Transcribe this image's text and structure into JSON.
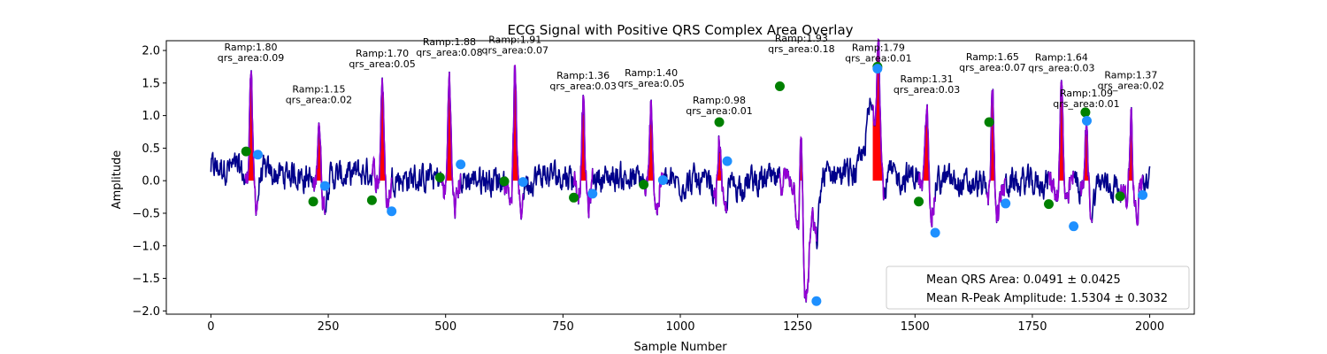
{
  "chart_data": {
    "type": "line",
    "title": "ECG Signal with Positive QRS Complex Area Overlay",
    "xlabel": "Sample Number",
    "ylabel": "Amplitude",
    "xlim": [
      -95,
      2095
    ],
    "ylim": [
      -2.05,
      2.15
    ],
    "xticks": [
      0,
      250,
      500,
      750,
      1000,
      1250,
      1500,
      1750,
      2000
    ],
    "xtick_labels": [
      "0",
      "250",
      "500",
      "750",
      "1000",
      "1250",
      "1500",
      "1750",
      "2000"
    ],
    "yticks": [
      -2.0,
      -1.5,
      -1.0,
      -0.5,
      0.0,
      0.5,
      1.0,
      1.5,
      2.0
    ],
    "ytick_labels": [
      "−2.0",
      "−1.5",
      "−1.0",
      "−0.5",
      "0.0",
      "0.5",
      "1.0",
      "1.5",
      "2.0"
    ],
    "grid": false,
    "colors": {
      "signal": "#00008b",
      "qrs_segment": "#9400d3",
      "area_fill": "#ff0000",
      "qrs_onset": "#008000",
      "qrs_offset": "#1e90ff"
    },
    "qrs_complexes": [
      {
        "r_x": 85,
        "r_amp": 1.8,
        "qrs_area": 0.09,
        "ramp_label": "Ramp:1.80",
        "area_label": "qrs_area:0.09",
        "onset": [
          75,
          0.45
        ],
        "offset": [
          100,
          0.4
        ]
      },
      {
        "r_x": 230,
        "r_amp": 1.15,
        "qrs_area": 0.02,
        "ramp_label": "Ramp:1.15",
        "area_label": "qrs_area:0.02",
        "onset": [
          218,
          -0.32
        ],
        "offset": [
          243,
          -0.08
        ]
      },
      {
        "r_x": 365,
        "r_amp": 1.7,
        "qrs_area": 0.05,
        "ramp_label": "Ramp:1.70",
        "area_label": "qrs_area:0.05",
        "onset": [
          343,
          -0.3
        ],
        "offset": [
          385,
          -0.47
        ]
      },
      {
        "r_x": 508,
        "r_amp": 1.88,
        "qrs_area": 0.08,
        "ramp_label": "Ramp:1.88",
        "area_label": "qrs_area:0.08",
        "onset": [
          488,
          0.05
        ],
        "offset": [
          532,
          0.25
        ]
      },
      {
        "r_x": 648,
        "r_amp": 1.91,
        "qrs_area": 0.07,
        "ramp_label": "Ramp:1.91",
        "area_label": "qrs_area:0.07",
        "onset": [
          625,
          -0.01
        ],
        "offset": [
          665,
          -0.02
        ]
      },
      {
        "r_x": 793,
        "r_amp": 1.36,
        "qrs_area": 0.03,
        "ramp_label": "Ramp:1.36",
        "area_label": "qrs_area:0.03",
        "onset": [
          773,
          -0.26
        ],
        "offset": [
          813,
          -0.2
        ]
      },
      {
        "r_x": 938,
        "r_amp": 1.4,
        "qrs_area": 0.05,
        "ramp_label": "Ramp:1.40",
        "area_label": "qrs_area:0.05",
        "onset": [
          922,
          -0.06
        ],
        "offset": [
          963,
          0.01
        ]
      },
      {
        "r_x": 1083,
        "r_amp": 0.98,
        "qrs_area": 0.01,
        "ramp_label": "Ramp:0.98",
        "area_label": "qrs_area:0.01",
        "onset": [
          1083,
          0.9
        ],
        "offset": [
          1100,
          0.3
        ]
      },
      {
        "r_x": 1258,
        "r_amp": 1.93,
        "qrs_area": 0.18,
        "ramp_label": "Ramp:1.93",
        "area_label": "qrs_area:0.18",
        "onset": [
          1212,
          1.45
        ],
        "offset": [
          1290,
          -1.85
        ]
      },
      {
        "r_x": 1422,
        "r_amp": 1.79,
        "qrs_area": 0.01,
        "ramp_label": "Ramp:1.79",
        "area_label": "qrs_area:0.01",
        "onset": [
          1420,
          1.75
        ],
        "offset": [
          1420,
          1.72
        ]
      },
      {
        "r_x": 1525,
        "r_amp": 1.31,
        "qrs_area": 0.03,
        "ramp_label": "Ramp:1.31",
        "area_label": "qrs_area:0.03",
        "onset": [
          1508,
          -0.32
        ],
        "offset": [
          1543,
          -0.8
        ]
      },
      {
        "r_x": 1665,
        "r_amp": 1.65,
        "qrs_area": 0.07,
        "ramp_label": "Ramp:1.65",
        "area_label": "qrs_area:0.07",
        "onset": [
          1658,
          0.9
        ],
        "offset": [
          1693,
          -0.35
        ]
      },
      {
        "r_x": 1812,
        "r_amp": 1.64,
        "qrs_area": 0.03,
        "ramp_label": "Ramp:1.64",
        "area_label": "qrs_area:0.03",
        "onset": [
          1785,
          -0.36
        ],
        "offset": [
          1838,
          -0.7
        ]
      },
      {
        "r_x": 1865,
        "r_amp": 1.09,
        "qrs_area": 0.01,
        "ramp_label": "Ramp:1.09",
        "area_label": "qrs_area:0.01",
        "onset": [
          1863,
          1.05
        ],
        "offset": [
          1866,
          0.92
        ]
      },
      {
        "r_x": 1960,
        "r_amp": 1.37,
        "qrs_area": 0.02,
        "ramp_label": "Ramp:1.37",
        "area_label": "qrs_area:0.02",
        "onset": [
          1937,
          -0.24
        ],
        "offset": [
          1985,
          -0.22
        ]
      }
    ],
    "legend": {
      "position": "lower right",
      "entries": [
        "Mean QRS Area: 0.0491 ± 0.0425",
        "Mean R-Peak Amplitude: 1.5304 ± 0.3032"
      ]
    }
  }
}
